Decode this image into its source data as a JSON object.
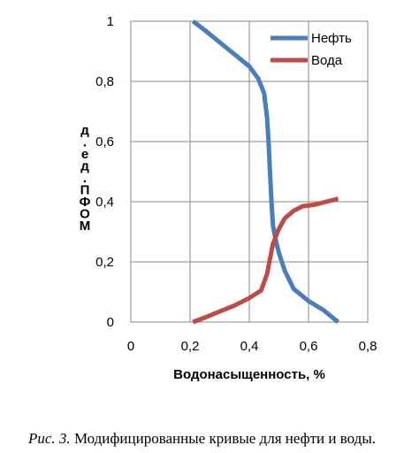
{
  "chart_data": {
    "type": "line",
    "xlabel": "Водонасыщенность,  %",
    "ylabel": "д.ед. ПФОМ",
    "xlim": [
      0,
      0.8
    ],
    "ylim": [
      0,
      1
    ],
    "x_ticks": [
      "0",
      "0,2",
      "0,4",
      "0,6",
      "0,8"
    ],
    "y_ticks": [
      "0",
      "0,2",
      "0,4",
      "0,6",
      "0,8",
      "1"
    ],
    "grid": true,
    "legend_position": "top-right",
    "series": [
      {
        "name": "Нефть",
        "color": "#4a7ebb",
        "points": [
          [
            0.21,
            1.0
          ],
          [
            0.25,
            0.97
          ],
          [
            0.3,
            0.93
          ],
          [
            0.35,
            0.89
          ],
          [
            0.4,
            0.85
          ],
          [
            0.43,
            0.81
          ],
          [
            0.45,
            0.76
          ],
          [
            0.46,
            0.68
          ],
          [
            0.465,
            0.6
          ],
          [
            0.47,
            0.5
          ],
          [
            0.475,
            0.4
          ],
          [
            0.48,
            0.32
          ],
          [
            0.49,
            0.27
          ],
          [
            0.5,
            0.23
          ],
          [
            0.52,
            0.17
          ],
          [
            0.55,
            0.11
          ],
          [
            0.6,
            0.07
          ],
          [
            0.65,
            0.04
          ],
          [
            0.7,
            0.0
          ]
        ]
      },
      {
        "name": "Вода",
        "color": "#be4b48",
        "points": [
          [
            0.21,
            0.0
          ],
          [
            0.25,
            0.015
          ],
          [
            0.3,
            0.035
          ],
          [
            0.35,
            0.055
          ],
          [
            0.4,
            0.08
          ],
          [
            0.44,
            0.105
          ],
          [
            0.46,
            0.16
          ],
          [
            0.47,
            0.21
          ],
          [
            0.48,
            0.26
          ],
          [
            0.5,
            0.31
          ],
          [
            0.52,
            0.345
          ],
          [
            0.55,
            0.37
          ],
          [
            0.58,
            0.385
          ],
          [
            0.62,
            0.39
          ],
          [
            0.66,
            0.4
          ],
          [
            0.7,
            0.41
          ]
        ]
      }
    ]
  },
  "caption": {
    "number": "Рис. 3.",
    "text": " Модифицированные кривые для нефти и воды."
  }
}
